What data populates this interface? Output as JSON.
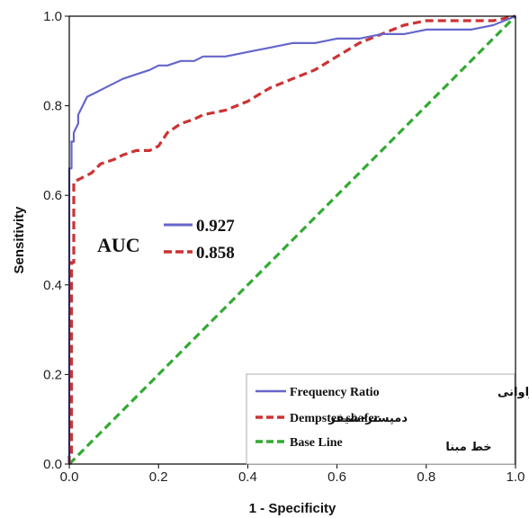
{
  "chart_data": {
    "type": "line",
    "title": "",
    "xlabel": "1 - Specificity",
    "ylabel": "Sensitivity",
    "xlim": [
      0,
      1
    ],
    "ylim": [
      0,
      1
    ],
    "x_ticks": [
      "0.0",
      "0.2",
      "0.4",
      "0.6",
      "0.8",
      "1.0"
    ],
    "y_ticks": [
      "0.0",
      "0.2",
      "0.4",
      "0.6",
      "0.8",
      "1.0"
    ],
    "grid": false,
    "legend_position": "bottom-right",
    "auc_label": "AUC",
    "auc_values": [
      {
        "value": "0.927",
        "color": "#6666cc",
        "dashed": false
      },
      {
        "value": "0.858",
        "color": "#cc3333",
        "dashed": true
      }
    ],
    "series": [
      {
        "name": "Frequency Ratio",
        "name_fa": "نسبت فراوانی",
        "color": "#6666cc",
        "dashed": false,
        "x": [
          0,
          0,
          0.005,
          0.005,
          0.01,
          0.01,
          0.02,
          0.02,
          0.03,
          0.04,
          0.06,
          0.08,
          0.1,
          0.12,
          0.15,
          0.18,
          0.2,
          0.22,
          0.25,
          0.28,
          0.3,
          0.35,
          0.4,
          0.45,
          0.5,
          0.55,
          0.6,
          0.65,
          0.7,
          0.75,
          0.8,
          0.85,
          0.9,
          0.95,
          1.0
        ],
        "y": [
          0,
          0.66,
          0.66,
          0.72,
          0.72,
          0.74,
          0.76,
          0.78,
          0.8,
          0.82,
          0.83,
          0.84,
          0.85,
          0.86,
          0.87,
          0.88,
          0.89,
          0.89,
          0.9,
          0.9,
          0.91,
          0.91,
          0.92,
          0.93,
          0.94,
          0.94,
          0.95,
          0.95,
          0.96,
          0.96,
          0.97,
          0.97,
          0.97,
          0.98,
          1.0
        ]
      },
      {
        "name": "Dempster-shafer",
        "name_fa": "دمپستر-شیفر",
        "color": "#cc3333",
        "dashed": true,
        "x": [
          0,
          0,
          0.005,
          0.005,
          0.01,
          0.01,
          0.03,
          0.05,
          0.07,
          0.1,
          0.12,
          0.15,
          0.18,
          0.2,
          0.22,
          0.25,
          0.28,
          0.3,
          0.35,
          0.4,
          0.45,
          0.5,
          0.55,
          0.6,
          0.65,
          0.7,
          0.75,
          0.8,
          0.85,
          0.9,
          0.95,
          1.0
        ],
        "y": [
          0,
          0.02,
          0.02,
          0.45,
          0.45,
          0.63,
          0.64,
          0.65,
          0.67,
          0.68,
          0.69,
          0.7,
          0.7,
          0.71,
          0.74,
          0.76,
          0.77,
          0.78,
          0.79,
          0.81,
          0.84,
          0.86,
          0.88,
          0.91,
          0.94,
          0.96,
          0.98,
          0.99,
          0.99,
          0.99,
          0.99,
          1.0
        ]
      },
      {
        "name": "Base Line",
        "name_fa": "خط مبنا",
        "color": "#33aa33",
        "dashed": true,
        "x": [
          0,
          1
        ],
        "y": [
          0,
          1
        ]
      }
    ]
  }
}
